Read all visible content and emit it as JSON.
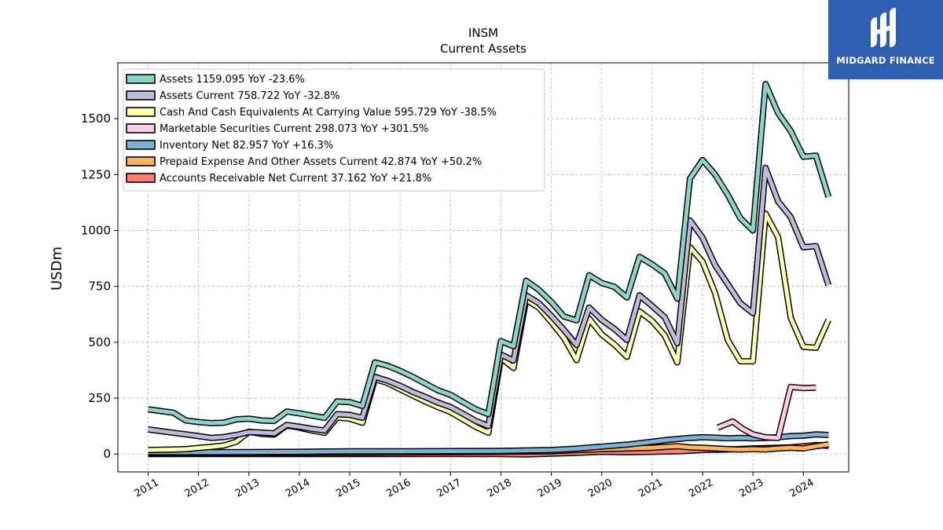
{
  "chart_data": {
    "type": "line",
    "title": "INSM",
    "subtitle": "Current  Assets",
    "ylabel": "USDm",
    "xlabel": "",
    "ylim": [
      -80,
      1750
    ],
    "xlim": [
      2010.4,
      2024.9
    ],
    "yticks": [
      0,
      250,
      500,
      750,
      1000,
      1250,
      1500
    ],
    "xticks": [
      "2011",
      "2012",
      "2013",
      "2014",
      "2015",
      "2016",
      "2017",
      "2018",
      "2019",
      "2020",
      "2021",
      "2022",
      "2023",
      "2024"
    ],
    "grid": true,
    "legend_position": "top-left",
    "series": [
      {
        "name": "Assets  1159.095 YoY -23.6%",
        "color": "#8dd3c7",
        "points": [
          [
            2011.0,
            200
          ],
          [
            2011.5,
            185
          ],
          [
            2011.75,
            150
          ],
          [
            2012.0,
            143
          ],
          [
            2012.25,
            138
          ],
          [
            2012.5,
            140
          ],
          [
            2012.75,
            155
          ],
          [
            2013.0,
            158
          ],
          [
            2013.25,
            150
          ],
          [
            2013.5,
            148
          ],
          [
            2013.75,
            190
          ],
          [
            2014.0,
            182
          ],
          [
            2014.25,
            172
          ],
          [
            2014.5,
            162
          ],
          [
            2014.75,
            235
          ],
          [
            2015.0,
            232
          ],
          [
            2015.25,
            215
          ],
          [
            2015.5,
            410
          ],
          [
            2015.75,
            395
          ],
          [
            2016.0,
            372
          ],
          [
            2016.25,
            345
          ],
          [
            2016.5,
            315
          ],
          [
            2016.75,
            285
          ],
          [
            2017.0,
            265
          ],
          [
            2017.25,
            232
          ],
          [
            2017.5,
            200
          ],
          [
            2017.75,
            178
          ],
          [
            2018.0,
            505
          ],
          [
            2018.25,
            482
          ],
          [
            2018.5,
            775
          ],
          [
            2018.75,
            735
          ],
          [
            2019.0,
            680
          ],
          [
            2019.25,
            615
          ],
          [
            2019.5,
            598
          ],
          [
            2019.75,
            800
          ],
          [
            2020.0,
            765
          ],
          [
            2020.25,
            748
          ],
          [
            2020.5,
            700
          ],
          [
            2020.75,
            882
          ],
          [
            2021.0,
            848
          ],
          [
            2021.25,
            808
          ],
          [
            2021.5,
            695
          ],
          [
            2021.75,
            1232
          ],
          [
            2022.0,
            1315
          ],
          [
            2022.25,
            1250
          ],
          [
            2022.5,
            1160
          ],
          [
            2022.75,
            1055
          ],
          [
            2023.0,
            1000
          ],
          [
            2023.25,
            1655
          ],
          [
            2023.5,
            1525
          ],
          [
            2023.75,
            1445
          ],
          [
            2024.0,
            1330
          ],
          [
            2024.25,
            1335
          ],
          [
            2024.5,
            1150
          ]
        ]
      },
      {
        "name": "Assets Current  758.722 YoY -32.8%",
        "color": "#bebada",
        "points": [
          [
            2011.0,
            110
          ],
          [
            2011.5,
            95
          ],
          [
            2011.75,
            88
          ],
          [
            2012.0,
            80
          ],
          [
            2012.25,
            72
          ],
          [
            2012.5,
            76
          ],
          [
            2012.75,
            85
          ],
          [
            2013.0,
            98
          ],
          [
            2013.25,
            96
          ],
          [
            2013.5,
            92
          ],
          [
            2013.75,
            130
          ],
          [
            2014.0,
            122
          ],
          [
            2014.25,
            113
          ],
          [
            2014.5,
            105
          ],
          [
            2014.75,
            178
          ],
          [
            2015.0,
            175
          ],
          [
            2015.25,
            162
          ],
          [
            2015.5,
            345
          ],
          [
            2015.75,
            328
          ],
          [
            2016.0,
            305
          ],
          [
            2016.25,
            278
          ],
          [
            2016.5,
            255
          ],
          [
            2016.75,
            230
          ],
          [
            2017.0,
            210
          ],
          [
            2017.25,
            180
          ],
          [
            2017.5,
            148
          ],
          [
            2017.75,
            125
          ],
          [
            2018.0,
            445
          ],
          [
            2018.25,
            418
          ],
          [
            2018.5,
            710
          ],
          [
            2018.75,
            675
          ],
          [
            2019.0,
            618
          ],
          [
            2019.25,
            555
          ],
          [
            2019.5,
            488
          ],
          [
            2019.75,
            655
          ],
          [
            2020.0,
            600
          ],
          [
            2020.25,
            560
          ],
          [
            2020.5,
            510
          ],
          [
            2020.75,
            710
          ],
          [
            2021.0,
            662
          ],
          [
            2021.25,
            612
          ],
          [
            2021.5,
            495
          ],
          [
            2021.75,
            1045
          ],
          [
            2022.0,
            968
          ],
          [
            2022.25,
            845
          ],
          [
            2022.5,
            760
          ],
          [
            2022.75,
            675
          ],
          [
            2023.0,
            630
          ],
          [
            2023.25,
            1280
          ],
          [
            2023.5,
            1130
          ],
          [
            2023.75,
            1060
          ],
          [
            2024.0,
            925
          ],
          [
            2024.25,
            930
          ],
          [
            2024.5,
            755
          ]
        ]
      },
      {
        "name": "Cash And Cash Equivalents At Carrying Value  595.729 YoY -38.5%",
        "color": "#ffffb3",
        "points": [
          [
            2011.0,
            18
          ],
          [
            2011.5,
            20
          ],
          [
            2011.75,
            22
          ],
          [
            2012.0,
            27
          ],
          [
            2012.25,
            32
          ],
          [
            2012.5,
            38
          ],
          [
            2012.75,
            55
          ],
          [
            2013.0,
            100
          ],
          [
            2013.25,
            90
          ],
          [
            2013.5,
            87
          ],
          [
            2013.75,
            128
          ],
          [
            2014.0,
            118
          ],
          [
            2014.25,
            105
          ],
          [
            2014.5,
            95
          ],
          [
            2014.75,
            163
          ],
          [
            2015.0,
            158
          ],
          [
            2015.25,
            140
          ],
          [
            2015.5,
            335
          ],
          [
            2015.75,
            318
          ],
          [
            2016.0,
            290
          ],
          [
            2016.25,
            262
          ],
          [
            2016.5,
            235
          ],
          [
            2016.75,
            210
          ],
          [
            2017.0,
            188
          ],
          [
            2017.25,
            155
          ],
          [
            2017.5,
            122
          ],
          [
            2017.75,
            95
          ],
          [
            2018.0,
            430
          ],
          [
            2018.25,
            385
          ],
          [
            2018.5,
            690
          ],
          [
            2018.75,
            655
          ],
          [
            2019.0,
            590
          ],
          [
            2019.25,
            520
          ],
          [
            2019.5,
            420
          ],
          [
            2019.75,
            605
          ],
          [
            2020.0,
            535
          ],
          [
            2020.25,
            490
          ],
          [
            2020.5,
            435
          ],
          [
            2020.75,
            638
          ],
          [
            2021.0,
            595
          ],
          [
            2021.25,
            530
          ],
          [
            2021.5,
            410
          ],
          [
            2021.75,
            925
          ],
          [
            2022.0,
            860
          ],
          [
            2022.25,
            720
          ],
          [
            2022.5,
            510
          ],
          [
            2022.75,
            415
          ],
          [
            2023.0,
            415
          ],
          [
            2023.25,
            1075
          ],
          [
            2023.5,
            970
          ],
          [
            2023.75,
            610
          ],
          [
            2024.0,
            480
          ],
          [
            2024.25,
            475
          ],
          [
            2024.5,
            600
          ]
        ]
      },
      {
        "name": "Marketable Securities Current  298.073 YoY +301.5%",
        "color": "#fccde5",
        "points": [
          [
            2022.3,
            118
          ],
          [
            2022.6,
            145
          ],
          [
            2022.8,
            112
          ],
          [
            2023.0,
            88
          ],
          [
            2023.25,
            75
          ],
          [
            2023.5,
            72
          ],
          [
            2023.75,
            300
          ],
          [
            2024.0,
            295
          ],
          [
            2024.25,
            297
          ]
        ]
      },
      {
        "name": "Inventory Net  82.957 YoY +16.3%",
        "color": "#80b1d3",
        "points": [
          [
            2011.0,
            8
          ],
          [
            2012.0,
            8
          ],
          [
            2013.0,
            9
          ],
          [
            2014.0,
            10
          ],
          [
            2015.0,
            12
          ],
          [
            2016.0,
            12
          ],
          [
            2017.0,
            13
          ],
          [
            2018.0,
            14
          ],
          [
            2019.0,
            18
          ],
          [
            2019.5,
            24
          ],
          [
            2020.0,
            33
          ],
          [
            2020.5,
            42
          ],
          [
            2021.0,
            55
          ],
          [
            2021.25,
            62
          ],
          [
            2021.5,
            67
          ],
          [
            2021.75,
            72
          ],
          [
            2022.0,
            75
          ],
          [
            2022.25,
            73
          ],
          [
            2022.5,
            70
          ],
          [
            2022.75,
            72
          ],
          [
            2023.0,
            70
          ],
          [
            2023.25,
            72
          ],
          [
            2023.5,
            75
          ],
          [
            2023.75,
            80
          ],
          [
            2024.0,
            82
          ],
          [
            2024.25,
            88
          ],
          [
            2024.5,
            85
          ]
        ]
      },
      {
        "name": "Prepaid Expense And Other Assets Current  42.874 YoY +50.2%",
        "color": "#fdb462",
        "points": [
          [
            2011.0,
            4
          ],
          [
            2012.0,
            4
          ],
          [
            2013.0,
            5
          ],
          [
            2014.0,
            5
          ],
          [
            2015.0,
            6
          ],
          [
            2016.0,
            7
          ],
          [
            2017.0,
            8
          ],
          [
            2018.0,
            10
          ],
          [
            2019.0,
            12
          ],
          [
            2019.5,
            18
          ],
          [
            2020.0,
            22
          ],
          [
            2020.5,
            25
          ],
          [
            2021.0,
            28
          ],
          [
            2021.25,
            32
          ],
          [
            2021.5,
            35
          ],
          [
            2021.75,
            30
          ],
          [
            2022.0,
            28
          ],
          [
            2022.25,
            25
          ],
          [
            2022.5,
            22
          ],
          [
            2022.75,
            20
          ],
          [
            2023.0,
            22
          ],
          [
            2023.25,
            20
          ],
          [
            2023.5,
            25
          ],
          [
            2023.75,
            28
          ],
          [
            2024.0,
            25
          ],
          [
            2024.25,
            35
          ],
          [
            2024.5,
            43
          ]
        ]
      },
      {
        "name": "Accounts Receivable Net Current  37.162 YoY +21.8%",
        "color": "#fb8072",
        "points": [
          [
            2011.0,
            0
          ],
          [
            2012.0,
            0
          ],
          [
            2013.0,
            0
          ],
          [
            2014.0,
            0
          ],
          [
            2015.0,
            0
          ],
          [
            2016.0,
            0
          ],
          [
            2017.0,
            0
          ],
          [
            2018.0,
            0
          ],
          [
            2018.5,
            -2
          ],
          [
            2019.0,
            2
          ],
          [
            2019.5,
            5
          ],
          [
            2020.0,
            10
          ],
          [
            2020.5,
            8
          ],
          [
            2021.0,
            10
          ],
          [
            2021.5,
            12
          ],
          [
            2021.75,
            15
          ],
          [
            2022.0,
            18
          ],
          [
            2022.5,
            20
          ],
          [
            2023.0,
            25
          ],
          [
            2023.5,
            28
          ],
          [
            2023.75,
            30
          ],
          [
            2024.0,
            35
          ],
          [
            2024.25,
            40
          ],
          [
            2024.5,
            37
          ]
        ]
      }
    ]
  },
  "logo": {
    "text": "MIDGARD FINANCE"
  }
}
